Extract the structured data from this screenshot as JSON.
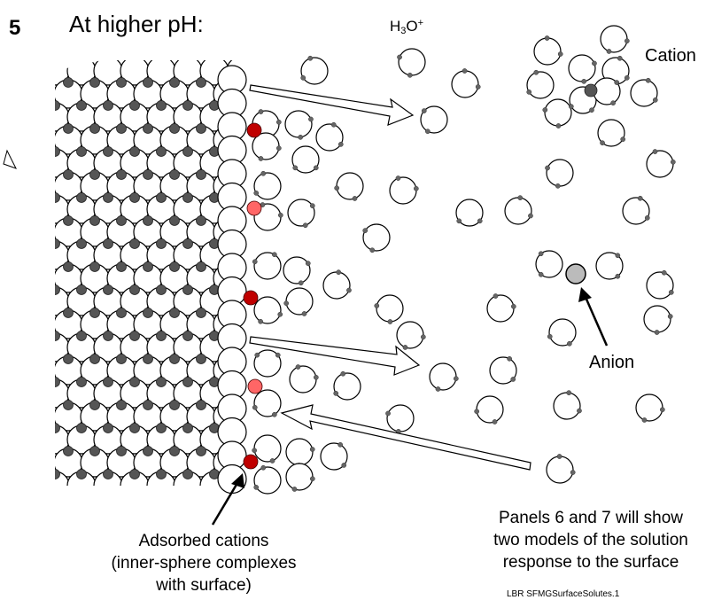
{
  "panel_number": "5",
  "title": "At higher pH:",
  "labels": {
    "h3o_base": "H",
    "h3o_sub": "3",
    "h3o_o": "O",
    "h3o_sup": "+",
    "cation": "Cation",
    "anion": "Anion",
    "adsorbed_line1": "Adsorbed cations",
    "adsorbed_line2": "(inner-sphere complexes",
    "adsorbed_line3": "with surface)",
    "panels_line1": "Panels 6 and 7 will show",
    "panels_line2": "two models of the solution",
    "panels_line3": "response to the surface",
    "footer": "LBR SFMGSurfaceSolutes.1"
  },
  "colors": {
    "adsorbed_cation_dark": "#c00000",
    "adsorbed_cation_light": "#ff6666",
    "lattice_dark_atom": "#555555",
    "anion_fill": "#bbbbbb"
  }
}
